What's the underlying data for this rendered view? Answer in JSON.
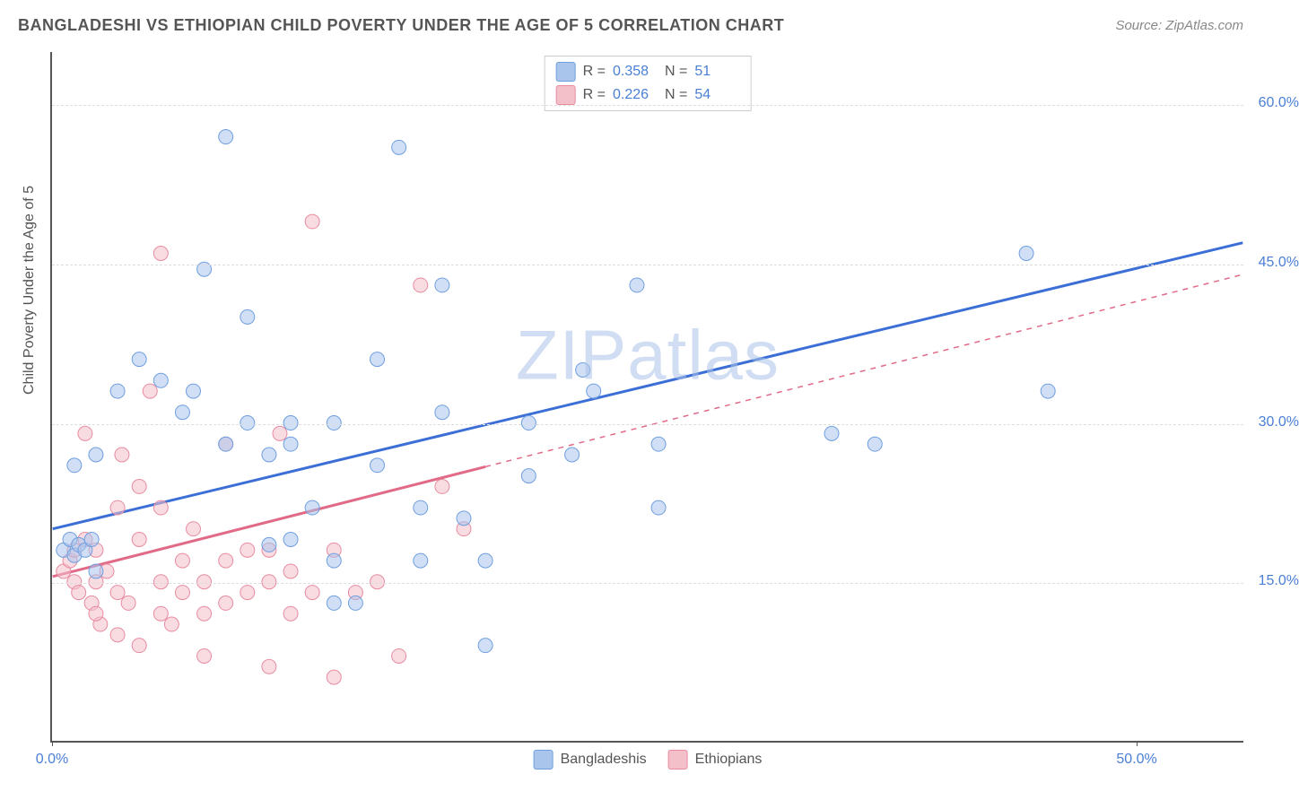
{
  "meta": {
    "title": "BANGLADESHI VS ETHIOPIAN CHILD POVERTY UNDER THE AGE OF 5 CORRELATION CHART",
    "source_label": "Source: ZipAtlas.com",
    "watermark": "ZIPatlas"
  },
  "chart": {
    "type": "scatter",
    "ylabel": "Child Poverty Under the Age of 5",
    "xlim": [
      0,
      55
    ],
    "ylim": [
      0,
      65
    ],
    "xticks": [
      0,
      50
    ],
    "xtick_labels": [
      "0.0%",
      "50.0%"
    ],
    "yticks": [
      15,
      30,
      45,
      60
    ],
    "ytick_labels": [
      "15.0%",
      "30.0%",
      "45.0%",
      "60.0%"
    ],
    "background_color": "#ffffff",
    "grid_color": "#dddddd",
    "axis_color": "#555555",
    "marker_radius": 8,
    "marker_opacity": 0.55,
    "series": [
      {
        "name": "Bangladeshis",
        "color_fill": "#a9c5ec",
        "color_stroke": "#6f9fe0",
        "line_color": "#3b6fd6",
        "line_width": 3,
        "r_value": "0.358",
        "n_value": "51",
        "trend": {
          "x1": 0,
          "y1": 20,
          "x2": 55,
          "y2": 47,
          "solid_until_x": 55
        },
        "points": [
          [
            0.5,
            18
          ],
          [
            0.8,
            19
          ],
          [
            1.0,
            17.5
          ],
          [
            1.2,
            18.5
          ],
          [
            1.5,
            18
          ],
          [
            1.8,
            19
          ],
          [
            2,
            16
          ],
          [
            1,
            26
          ],
          [
            2,
            27
          ],
          [
            3,
            33
          ],
          [
            4,
            36
          ],
          [
            5,
            34
          ],
          [
            6,
            31
          ],
          [
            6.5,
            33
          ],
          [
            7,
            44.5
          ],
          [
            8,
            57
          ],
          [
            8,
            28
          ],
          [
            9,
            40
          ],
          [
            9,
            30
          ],
          [
            10,
            27
          ],
          [
            10,
            18.5
          ],
          [
            11,
            28
          ],
          [
            11,
            19
          ],
          [
            11,
            30
          ],
          [
            12,
            22
          ],
          [
            13,
            30
          ],
          [
            13,
            13
          ],
          [
            13,
            17
          ],
          [
            14,
            13
          ],
          [
            15,
            26
          ],
          [
            15,
            36
          ],
          [
            16,
            56
          ],
          [
            17,
            17
          ],
          [
            17,
            22
          ],
          [
            18,
            43
          ],
          [
            18,
            31
          ],
          [
            19,
            21
          ],
          [
            20,
            17
          ],
          [
            20,
            9
          ],
          [
            22,
            30
          ],
          [
            22,
            25
          ],
          [
            24,
            27
          ],
          [
            24.5,
            35
          ],
          [
            25,
            33
          ],
          [
            27,
            43
          ],
          [
            28,
            22
          ],
          [
            28,
            28
          ],
          [
            36,
            29
          ],
          [
            38,
            28
          ],
          [
            45,
            46
          ],
          [
            46,
            33
          ]
        ]
      },
      {
        "name": "Ethiopians",
        "color_fill": "#f3c0ca",
        "color_stroke": "#e88ba0",
        "line_color": "#e16a87",
        "line_width": 3,
        "r_value": "0.226",
        "n_value": "54",
        "trend": {
          "x1": 0,
          "y1": 15.5,
          "x2": 55,
          "y2": 44,
          "solid_until_x": 20
        },
        "points": [
          [
            0.5,
            16
          ],
          [
            0.8,
            17
          ],
          [
            1,
            15
          ],
          [
            1,
            18
          ],
          [
            1.2,
            14
          ],
          [
            1.5,
            19
          ],
          [
            1.8,
            13
          ],
          [
            2,
            15
          ],
          [
            2,
            18
          ],
          [
            2.2,
            11
          ],
          [
            2.5,
            16
          ],
          [
            3,
            14
          ],
          [
            3,
            22
          ],
          [
            3,
            10
          ],
          [
            3.2,
            27
          ],
          [
            3.5,
            13
          ],
          [
            4,
            9
          ],
          [
            4,
            19
          ],
          [
            4,
            24
          ],
          [
            4.5,
            33
          ],
          [
            5,
            12
          ],
          [
            5,
            15
          ],
          [
            5,
            22
          ],
          [
            5,
            46
          ],
          [
            5.5,
            11
          ],
          [
            6,
            14
          ],
          [
            6,
            17
          ],
          [
            6.5,
            20
          ],
          [
            7,
            8
          ],
          [
            7,
            12
          ],
          [
            7,
            15
          ],
          [
            8,
            17
          ],
          [
            8,
            28
          ],
          [
            8,
            13
          ],
          [
            9,
            14
          ],
          [
            9,
            18
          ],
          [
            10,
            7
          ],
          [
            10,
            15
          ],
          [
            10,
            18
          ],
          [
            10.5,
            29
          ],
          [
            11,
            12
          ],
          [
            11,
            16
          ],
          [
            12,
            49
          ],
          [
            12,
            14
          ],
          [
            13,
            6
          ],
          [
            13,
            18
          ],
          [
            14,
            14
          ],
          [
            15,
            15
          ],
          [
            16,
            8
          ],
          [
            17,
            43
          ],
          [
            18,
            24
          ],
          [
            19,
            20
          ],
          [
            1.5,
            29
          ],
          [
            2,
            12
          ]
        ]
      }
    ],
    "legend_bottom": [
      "Bangladeshis",
      "Ethiopians"
    ]
  },
  "styling": {
    "title_fontsize": 18,
    "label_fontsize": 16,
    "tick_fontsize": 16,
    "tick_color": "#4a7fd6"
  }
}
